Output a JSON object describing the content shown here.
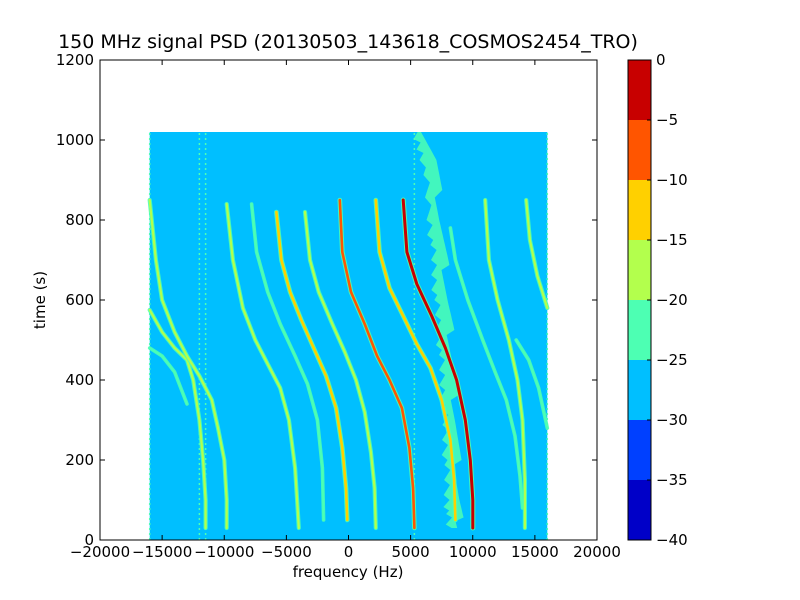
{
  "chart_data": {
    "type": "heatmap",
    "title": "150 MHz signal PSD (20130503_143618_COSMOS2454_TRO)",
    "xlabel": "frequency (Hz)",
    "ylabel": "time (s)",
    "xlim": [
      -20000,
      20000
    ],
    "ylim": [
      0,
      1200
    ],
    "xticks": [
      -20000,
      -15000,
      -10000,
      -5000,
      0,
      5000,
      10000,
      15000,
      20000
    ],
    "xtick_labels": [
      "−20000",
      "−15000",
      "−10000",
      "−5000",
      "0",
      "5000",
      "10000",
      "15000",
      "20000"
    ],
    "yticks": [
      0,
      200,
      400,
      600,
      800,
      1000,
      1200
    ],
    "ytick_labels": [
      "0",
      "200",
      "400",
      "600",
      "800",
      "1000",
      "1200"
    ],
    "data_extent": {
      "x": [
        -16000,
        16000
      ],
      "y": [
        0,
        1020
      ]
    },
    "background_level_band": [
      -30,
      -25
    ],
    "colorbar": {
      "levels": [
        -40,
        -35,
        -30,
        -25,
        -20,
        -15,
        -10,
        -5,
        0
      ],
      "tick_labels": [
        "−40",
        "−35",
        "−30",
        "−25",
        "−20",
        "−15",
        "−10",
        "−5",
        "0"
      ],
      "colors": [
        "#0000c8",
        "#0040ff",
        "#00bfff",
        "#4dffb3",
        "#b3ff4d",
        "#ffd000",
        "#ff5500",
        "#c80000"
      ]
    },
    "background_color": "#00bfff",
    "tracks": [
      {
        "name": "t1",
        "level": "mid",
        "color": "#b3ff4d",
        "points": [
          [
            -16000,
            575
          ],
          [
            -15000,
            520
          ],
          [
            -14000,
            480
          ],
          [
            -13000,
            450
          ],
          [
            -12500,
            400
          ],
          [
            -12000,
            300
          ],
          [
            -11700,
            200
          ],
          [
            -11500,
            100
          ],
          [
            -11500,
            30
          ]
        ]
      },
      {
        "name": "t2",
        "level": "mid",
        "color": "#b3ff4d",
        "points": [
          [
            -16000,
            850
          ],
          [
            -15500,
            700
          ],
          [
            -15000,
            600
          ],
          [
            -14000,
            520
          ],
          [
            -13000,
            460
          ],
          [
            -12000,
            410
          ],
          [
            -11000,
            350
          ],
          [
            -10500,
            280
          ],
          [
            -10000,
            200
          ],
          [
            -9800,
            100
          ],
          [
            -9800,
            30
          ]
        ]
      },
      {
        "name": "t3",
        "level": "faint",
        "color": "#4dffb3",
        "points": [
          [
            -16000,
            480
          ],
          [
            -15000,
            460
          ],
          [
            -14000,
            420
          ],
          [
            -13000,
            340
          ]
        ]
      },
      {
        "name": "t4",
        "level": "mid",
        "color": "#b3ff4d",
        "points": [
          [
            -9800,
            840
          ],
          [
            -9300,
            700
          ],
          [
            -8500,
            580
          ],
          [
            -7500,
            500
          ],
          [
            -6500,
            440
          ],
          [
            -5500,
            380
          ],
          [
            -4800,
            300
          ],
          [
            -4300,
            180
          ],
          [
            -4100,
            80
          ],
          [
            -4000,
            30
          ]
        ]
      },
      {
        "name": "t5",
        "level": "faint",
        "color": "#4dffb3",
        "points": [
          [
            -7800,
            840
          ],
          [
            -7400,
            720
          ],
          [
            -6500,
            620
          ],
          [
            -5500,
            540
          ],
          [
            -4300,
            460
          ],
          [
            -3300,
            390
          ],
          [
            -2500,
            300
          ],
          [
            -2100,
            180
          ],
          [
            -2000,
            50
          ]
        ]
      },
      {
        "name": "t6",
        "level": "strong",
        "color": "#ffd000",
        "points": [
          [
            -5800,
            820
          ],
          [
            -5400,
            700
          ],
          [
            -4700,
            620
          ],
          [
            -3800,
            550
          ],
          [
            -2800,
            480
          ],
          [
            -1800,
            410
          ],
          [
            -1000,
            330
          ],
          [
            -500,
            230
          ],
          [
            -200,
            130
          ],
          [
            -100,
            50
          ]
        ]
      },
      {
        "name": "t7",
        "level": "mid",
        "color": "#b3ff4d",
        "points": [
          [
            -3500,
            820
          ],
          [
            -3100,
            700
          ],
          [
            -2400,
            620
          ],
          [
            -1300,
            540
          ],
          [
            -300,
            470
          ],
          [
            600,
            400
          ],
          [
            1300,
            320
          ],
          [
            1800,
            220
          ],
          [
            2100,
            130
          ],
          [
            2200,
            30
          ]
        ]
      },
      {
        "name": "t8",
        "level": "strong",
        "color": "#ff5500",
        "points": [
          [
            -700,
            850
          ],
          [
            -500,
            720
          ],
          [
            200,
            620
          ],
          [
            1300,
            540
          ],
          [
            2300,
            460
          ],
          [
            3300,
            400
          ],
          [
            4300,
            330
          ],
          [
            4900,
            230
          ],
          [
            5200,
            130
          ],
          [
            5300,
            30
          ]
        ]
      },
      {
        "name": "t9",
        "level": "strong",
        "color": "#ffd000",
        "points": [
          [
            2200,
            850
          ],
          [
            2500,
            720
          ],
          [
            3300,
            630
          ],
          [
            4400,
            560
          ],
          [
            5500,
            490
          ],
          [
            6600,
            430
          ],
          [
            7500,
            350
          ],
          [
            8200,
            250
          ],
          [
            8500,
            150
          ],
          [
            8600,
            50
          ]
        ]
      },
      {
        "name": "t10",
        "level": "peak",
        "color": "#c80000",
        "points": [
          [
            4400,
            850
          ],
          [
            4700,
            720
          ],
          [
            5500,
            640
          ],
          [
            6700,
            560
          ],
          [
            7800,
            480
          ],
          [
            8700,
            400
          ],
          [
            9400,
            300
          ],
          [
            9800,
            200
          ],
          [
            10000,
            100
          ],
          [
            10000,
            30
          ]
        ]
      },
      {
        "name": "t11",
        "level": "faint",
        "color": "#4dffb3",
        "points": [
          [
            8200,
            780
          ],
          [
            8600,
            700
          ],
          [
            9600,
            600
          ],
          [
            10800,
            500
          ],
          [
            11800,
            420
          ],
          [
            12700,
            350
          ],
          [
            13400,
            260
          ],
          [
            13800,
            160
          ],
          [
            14000,
            80
          ]
        ]
      },
      {
        "name": "t12",
        "level": "mid",
        "color": "#b3ff4d",
        "points": [
          [
            11000,
            850
          ],
          [
            11300,
            700
          ],
          [
            12000,
            600
          ],
          [
            12900,
            500
          ],
          [
            13600,
            400
          ],
          [
            14000,
            300
          ],
          [
            14200,
            150
          ],
          [
            14200,
            30
          ]
        ]
      },
      {
        "name": "t13",
        "level": "mid",
        "color": "#b3ff4d",
        "points": [
          [
            14300,
            850
          ],
          [
            14600,
            750
          ],
          [
            15200,
            660
          ],
          [
            16000,
            580
          ]
        ]
      },
      {
        "name": "t14",
        "level": "faint",
        "color": "#4dffb3",
        "points": [
          [
            13500,
            500
          ],
          [
            14500,
            450
          ],
          [
            15300,
            380
          ],
          [
            16000,
            280
          ]
        ]
      }
    ],
    "noise_band": {
      "name": "fluctuating band",
      "color": "#4dffb3",
      "center": [
        [
          5700,
          1020
        ],
        [
          6500,
          950
        ],
        [
          7000,
          800
        ],
        [
          7300,
          700
        ],
        [
          7500,
          600
        ],
        [
          7800,
          500
        ],
        [
          8000,
          400
        ],
        [
          8200,
          300
        ],
        [
          8300,
          200
        ],
        [
          8400,
          100
        ],
        [
          8500,
          30
        ]
      ],
      "half_width": 900
    },
    "vertical_lines": [
      {
        "x": -16000,
        "y": [
          0,
          1020
        ],
        "color": "#4dffb3"
      },
      {
        "x": -12000,
        "y": [
          0,
          1020
        ],
        "color": "#4dffb3"
      },
      {
        "x": -11500,
        "y": [
          0,
          1020
        ],
        "color": "#4dffb3"
      },
      {
        "x": 5300,
        "y": [
          0,
          1020
        ],
        "color": "#4dffb3"
      },
      {
        "x": 16000,
        "y": [
          0,
          1020
        ],
        "color": "#4dffb3"
      }
    ]
  }
}
